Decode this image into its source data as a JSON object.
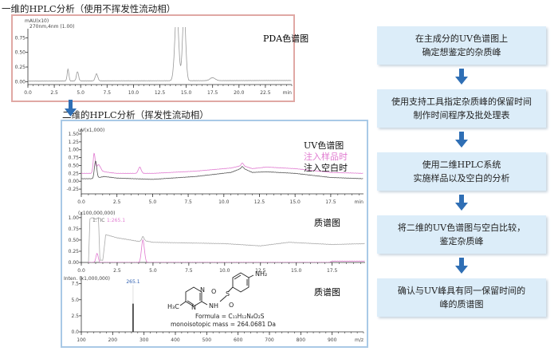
{
  "titles": {
    "first": "一维的HPLC分析（使用不挥发性流动相）",
    "second": "二维的HPLC分析（挥发性流动相）"
  },
  "labels": {
    "pda": "PDA色谱图",
    "uv": "UV色谱图",
    "sample": "注入样品时",
    "blank": "注入空白时",
    "ms1": "质谱图",
    "ms2": "质谱图"
  },
  "structure": {
    "nh2": "NH₂",
    "n1": "N",
    "n2": "N",
    "nh": "NH",
    "s": "S",
    "o1": "O",
    "o2": "O",
    "ch3": "H₃C",
    "formula": "Formula = C₁₁H₁₂N₄O₂S",
    "mass": "monoisotopic mass = 264.0681 Da"
  },
  "steps": [
    {
      "line1": "在主成分的UV色谱图上",
      "line2": "确定想鉴定的杂质峰"
    },
    {
      "line1": "使用支持工具指定杂质峰的保留时间",
      "line2": "制作时间程序及批处理表"
    },
    {
      "line1": "使用二维HPLC系统",
      "line2": "实施样品以及空白的分析"
    },
    {
      "line1": "将二维的UV色谱图与空白比较，",
      "line2": "鉴定杂质峰"
    },
    {
      "line1": "确认与UV峰具有同一保留时间的",
      "line2": "峰的质谱图"
    }
  ],
  "colors": {
    "sample": "#e07ad0",
    "blank": "#555555",
    "pda": "#999999",
    "tic": "#aaaaaa",
    "arrow": "#2f6fb5",
    "ms": "#222222"
  },
  "chart_data": [
    {
      "type": "line",
      "id": "pda",
      "ylabel": "mAU(x10)",
      "sublabel": "270nm,4nm (1.00)",
      "xunit": "min",
      "xlim": [
        0,
        25
      ],
      "ylim": [
        -0.05,
        0.85
      ],
      "xticks": [
        0,
        2.5,
        5,
        7.5,
        10,
        12.5,
        15,
        17.5,
        20,
        22.5
      ],
      "xtick_labels": [
        "0.0",
        "2.5",
        "5.0",
        "7.5",
        "10.0",
        "12.5",
        "15.0",
        "17.5",
        "20.0",
        "22.5"
      ],
      "yticks": [
        0,
        0.25,
        0.5,
        0.75
      ],
      "ytick_labels": [
        "0.00",
        "0.25",
        "0.50",
        "0.75"
      ],
      "series": [
        {
          "name": "PDA",
          "color_key": "pda",
          "baseline": [
            [
              0,
              0.01
            ],
            [
              25,
              0.02
            ]
          ],
          "peaks": [
            [
              3.8,
              0.2,
              0.08
            ],
            [
              4.7,
              0.16,
              0.1
            ],
            [
              6.5,
              0.12,
              0.12
            ],
            [
              14.1,
              1.2,
              0.18
            ],
            [
              14.8,
              1.2,
              0.15
            ],
            [
              17.5,
              0.05,
              0.25
            ]
          ]
        }
      ]
    },
    {
      "type": "line",
      "id": "uv",
      "ylabel": "uV(x1,000)",
      "xunit": "min",
      "xlim": [
        0,
        19.8
      ],
      "ylim": [
        -0.4,
        1.55
      ],
      "xticks": [
        0,
        2.5,
        5,
        7.5,
        10,
        12.5,
        15,
        17.5
      ],
      "xtick_labels": [
        "0.0",
        "2.5",
        "5.0",
        "7.5",
        "10.0",
        "12.5",
        "15.0",
        "17.5"
      ],
      "yticks": [
        -0.25,
        0,
        0.25,
        0.5,
        0.75,
        1.0,
        1.25,
        1.5
      ],
      "ytick_labels": [
        "-0.25",
        "0.00",
        "0.25",
        "0.50",
        "0.75",
        "1.00",
        "1.25",
        "1.50"
      ],
      "series": [
        {
          "name": "注入样品时",
          "color_key": "sample",
          "baseline": [
            [
              0,
              0.25
            ],
            [
              0.8,
              0.25
            ],
            [
              1.6,
              0.3
            ],
            [
              2.5,
              0.25
            ],
            [
              5,
              0.25
            ],
            [
              8,
              0.32
            ],
            [
              10.5,
              0.42
            ],
            [
              11.3,
              0.5
            ],
            [
              12,
              0.4
            ],
            [
              13,
              0.45
            ],
            [
              15,
              0.4
            ],
            [
              17.5,
              0.28
            ],
            [
              19.8,
              0.25
            ]
          ],
          "peaks": [
            [
              0.9,
              0.6,
              0.07
            ],
            [
              1.2,
              0.25,
              0.15
            ],
            [
              4.1,
              0.2,
              0.1
            ],
            [
              11.3,
              0.08,
              0.08
            ]
          ]
        },
        {
          "name": "注入空白时",
          "color_key": "blank",
          "baseline": [
            [
              0,
              0.08
            ],
            [
              0.8,
              0.08
            ],
            [
              1.6,
              0.15
            ],
            [
              2.5,
              0.1
            ],
            [
              5,
              0.06
            ],
            [
              8,
              0.15
            ],
            [
              10.5,
              0.28
            ],
            [
              11.3,
              0.42
            ],
            [
              12,
              0.28
            ],
            [
              13,
              0.3
            ],
            [
              15,
              0.25
            ],
            [
              17.5,
              0.12
            ],
            [
              19.8,
              0.08
            ]
          ],
          "peaks": [
            [
              1.0,
              0.55,
              0.08
            ],
            [
              11.3,
              0.05,
              0.08
            ]
          ]
        }
      ]
    },
    {
      "type": "line",
      "id": "tic",
      "ylabel": "(x100,000,000)",
      "trace1": "1:TIC",
      "trace2": "1:265.1",
      "xunit": "",
      "xlim": [
        0,
        19.8
      ],
      "ylim": [
        0,
        1.05
      ],
      "xticks": [
        0,
        2.5,
        5,
        7.5,
        10,
        12.5,
        15,
        17.5
      ],
      "xtick_labels": [
        "0.0",
        "2.5",
        "5.0",
        "7.5",
        "10.0",
        "12.5",
        "15.0",
        "17.5"
      ],
      "yticks": [
        0,
        0.25,
        0.5,
        0.75,
        1.0
      ],
      "ytick_labels": [
        "0.00",
        "0.25",
        "0.50",
        "0.75",
        "1.00"
      ],
      "series": [
        {
          "name": "1:TIC",
          "color_key": "tic",
          "baseline": [
            [
              0.5,
              0
            ],
            [
              0.6,
              0.98
            ],
            [
              0.8,
              1.0
            ],
            [
              1.0,
              0.97
            ],
            [
              1.2,
              1.0
            ],
            [
              1.3,
              0.05
            ],
            [
              1.5,
              0.05
            ],
            [
              1.7,
              0.62
            ],
            [
              2.5,
              0.55
            ],
            [
              4,
              0.47
            ],
            [
              4.5,
              0.48
            ],
            [
              5,
              0.45
            ],
            [
              10,
              0.42
            ],
            [
              12.5,
              0.37
            ],
            [
              14.5,
              0.45
            ],
            [
              17.5,
              0.4
            ],
            [
              19.8,
              0.42
            ]
          ],
          "peaks": [
            [
              4.3,
              0.1,
              0.08
            ]
          ]
        },
        {
          "name": "1:265.1",
          "color_key": "sample",
          "baseline": [
            [
              0.5,
              0
            ],
            [
              4.0,
              0
            ],
            [
              4.6,
              0
            ],
            [
              17.3,
              0
            ],
            [
              17.5,
              0.03
            ],
            [
              19.8,
              0.03
            ]
          ],
          "peaks": [
            [
              1.1,
              0.2,
              0.08
            ],
            [
              4.3,
              0.5,
              0.1
            ]
          ]
        }
      ]
    },
    {
      "type": "bar",
      "id": "ms",
      "ylabel": "Inten. (x1,000,000)",
      "xunit": "m/z",
      "xlim": [
        100,
        1000
      ],
      "ylim": [
        0,
        8.2
      ],
      "xticks": [
        100,
        200,
        300,
        400,
        500,
        600,
        700,
        800,
        900
      ],
      "xtick_labels": [
        "100",
        "200",
        "300",
        "400",
        "500",
        "600",
        "700",
        "800",
        "900"
      ],
      "yticks": [
        0,
        2.5,
        5,
        7.5
      ],
      "ytick_labels": [
        "0.0",
        "2.5",
        "5.0",
        "7.5"
      ],
      "bars": [
        {
          "x": 265.1,
          "y": 4.4,
          "label": "265.1"
        }
      ]
    }
  ]
}
